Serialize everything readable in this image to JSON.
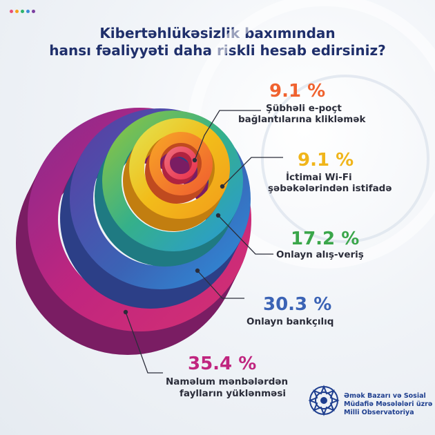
{
  "header": {
    "title_line1": "Kibertəhlükəsizlik baxımından",
    "title_line2": "hansı fəaliyyəti daha riskli hesab edirsiniz?"
  },
  "colors": {
    "dots": [
      "#e94e77",
      "#f7a21b",
      "#2db36b",
      "#3c8bd9",
      "#7b3fa0"
    ],
    "title": "#1f2f6b"
  },
  "chart_data": {
    "type": "pie",
    "title": "Kibertəhlükəsizlik baxımından hansı fəaliyyəti daha riskli hesab edirsiniz?",
    "unit": "%",
    "slices": [
      {
        "label": "Şübhəli e-poçt bağlantılarına kliklәmәk",
        "value": 9.1,
        "display": "9.1 %",
        "color": "#f26a3d"
      },
      {
        "label": "İctimai Wi-Fi şəbəkələrindən istifadə",
        "value": 9.1,
        "display": "9.1 %",
        "color": "#f0b51a"
      },
      {
        "label": "Onlayn alış-veriş",
        "value": 17.2,
        "display": "17.2 %",
        "color": "#4fae57"
      },
      {
        "label": "Onlayn bankçılıq",
        "value": 30.3,
        "display": "30.3 %",
        "color": "#3b63b5"
      },
      {
        "label": "Naməlum mənbələrdən faylların yüklənməsi",
        "value": 35.4,
        "display": "35.4 %",
        "color": "#c0257f"
      }
    ],
    "labels": [
      {
        "pct": "9.1 %",
        "lines": [
          "Şübhəli e-poçt",
          "bağlantılarına kliklәmәk"
        ]
      },
      {
        "pct": "9.1 %",
        "lines": [
          "İctimai Wi-Fi",
          "şəbəkələrindən istifadə"
        ]
      },
      {
        "pct": "17.2 %",
        "lines": [
          "Onlayn alış-veriş"
        ]
      },
      {
        "pct": "30.3 %",
        "lines": [
          "Onlayn bankçılıq"
        ]
      },
      {
        "pct": "35.4 %",
        "lines": [
          "Naməlum mənbələrdən",
          "faylların yüklənməsi"
        ]
      }
    ]
  },
  "footer": {
    "org_line1": "Əmək Bazarı və Sosial",
    "org_line2": "Müdafiə Məsələləri üzrə",
    "org_line3": "Milli Observatoriya"
  }
}
